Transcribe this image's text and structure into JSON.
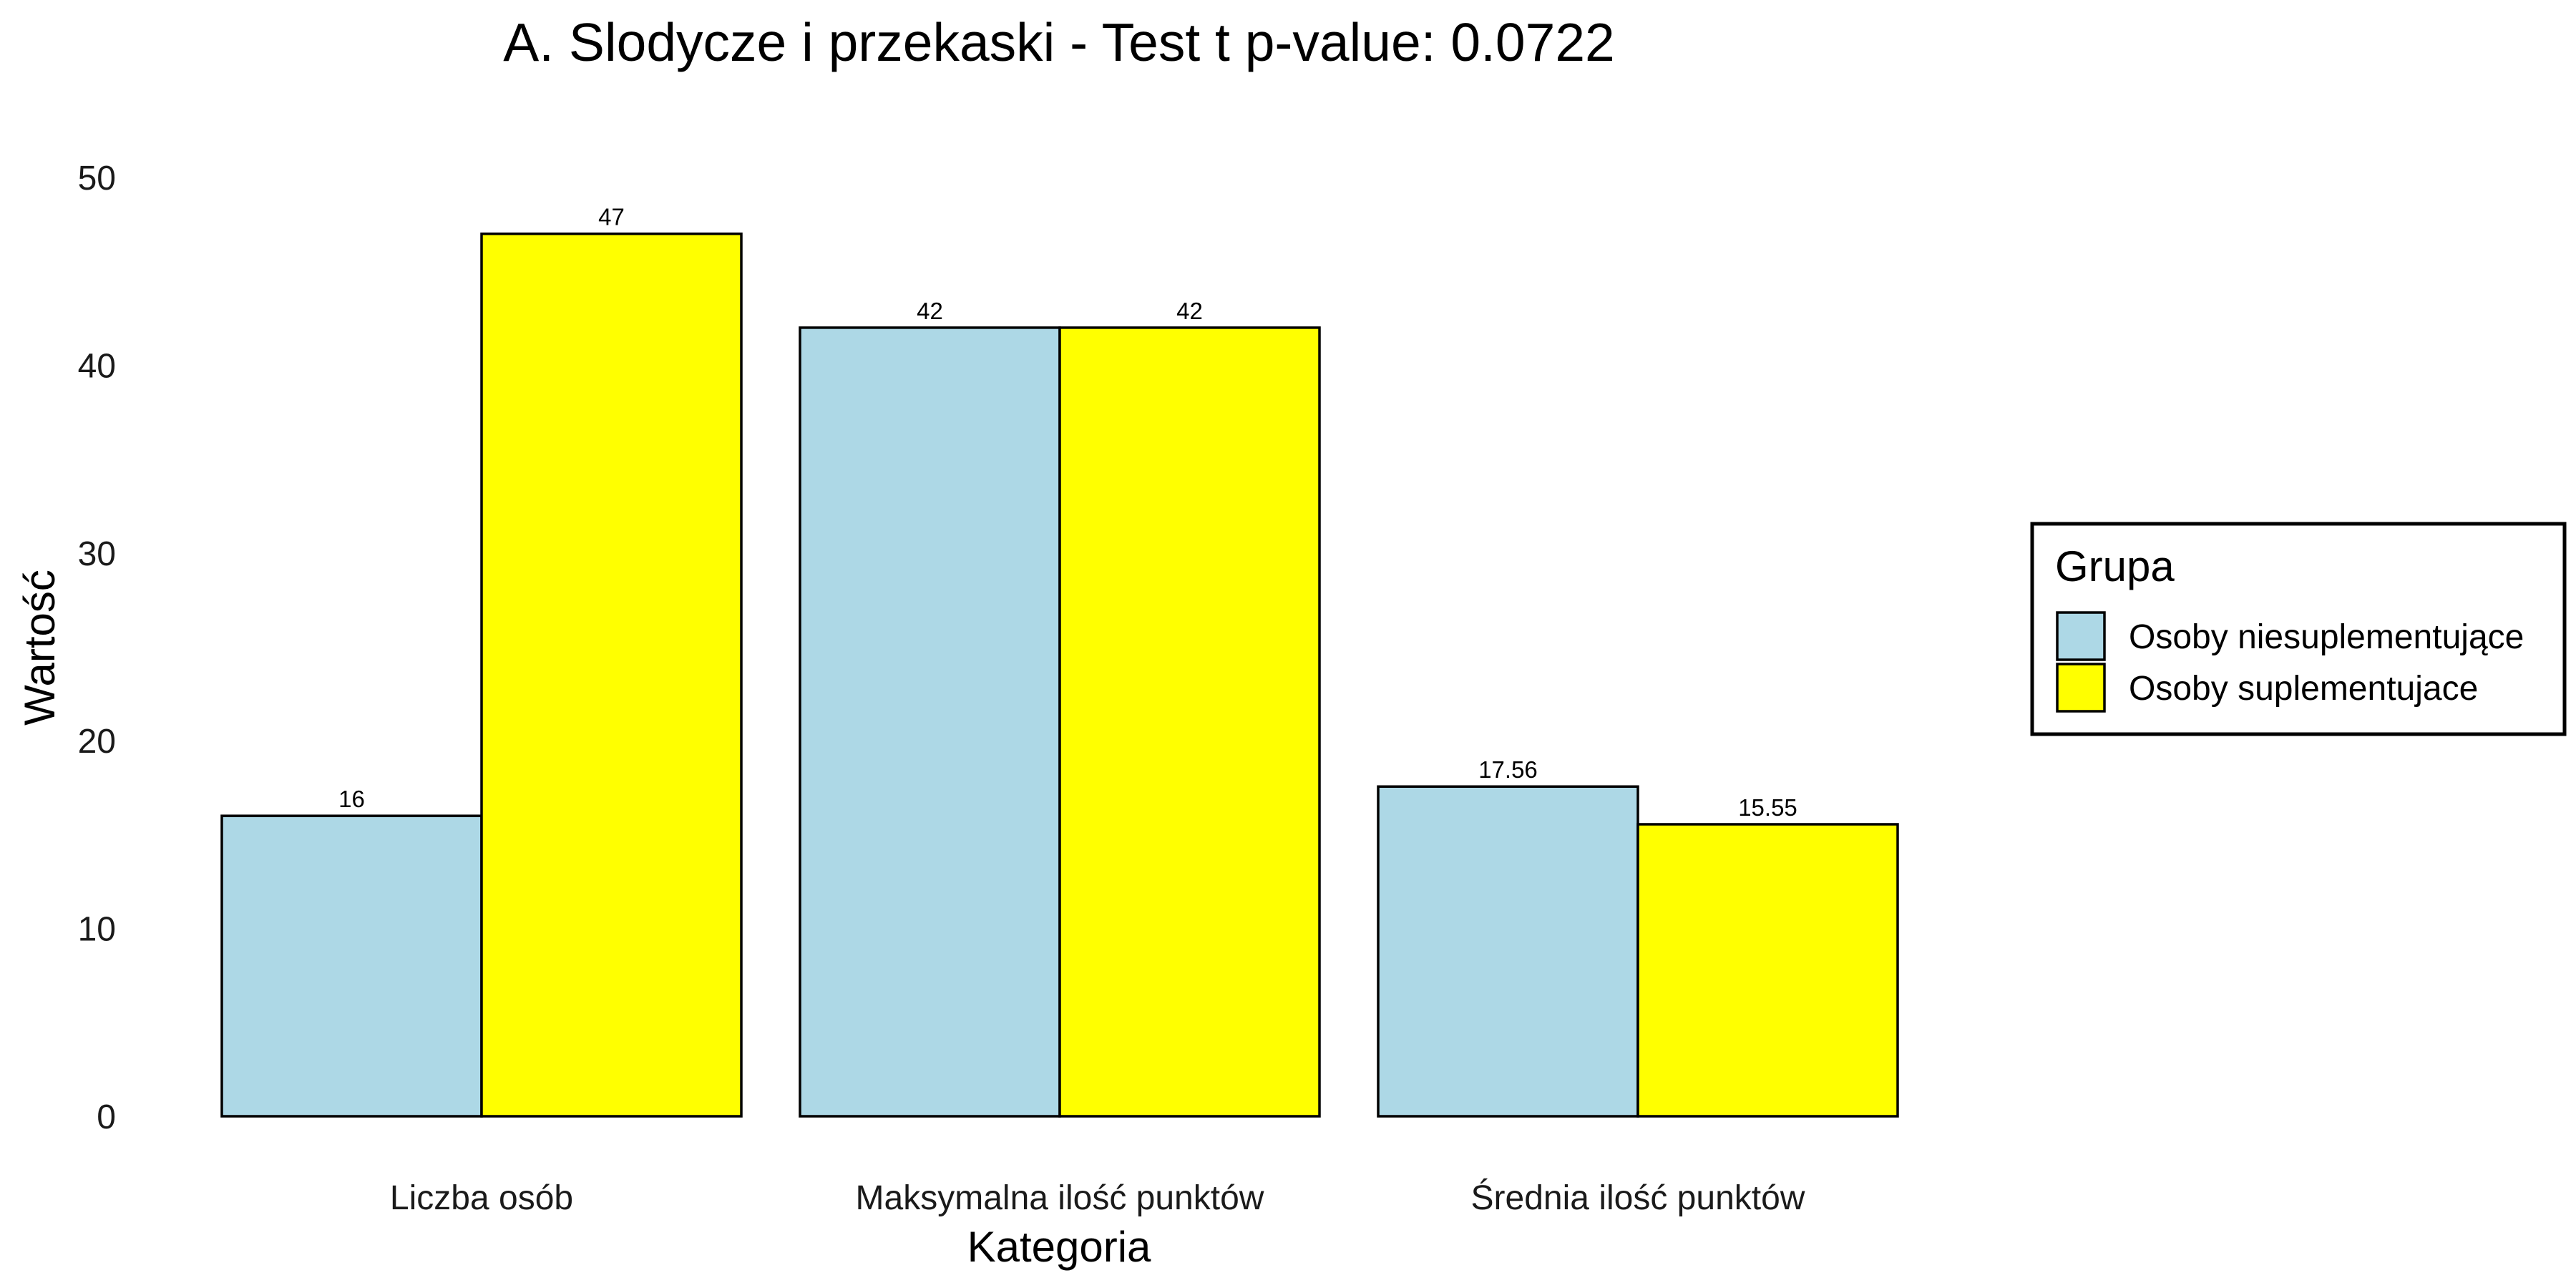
{
  "chart_data": {
    "type": "bar",
    "title": "A. Slodycze i przekaski - Test t p-value: 0.0722",
    "xlabel": "Kategoria",
    "ylabel": "Wartość",
    "ylim": [
      0,
      50
    ],
    "yticks": [
      "0",
      "10",
      "20",
      "30",
      "40",
      "50"
    ],
    "grid": false,
    "legend_position": "right",
    "legend_title": "Grupa",
    "categories": [
      "Liczba osób",
      "Maksymalna ilość punktów",
      "Średnia ilość punktów"
    ],
    "series": [
      {
        "name": "Osoby niesuplementujące",
        "color": "#ADD8E6",
        "values": [
          16,
          42,
          17.56
        ],
        "labels": [
          "16",
          "42",
          "17.56"
        ]
      },
      {
        "name": "Osoby suplementujace",
        "color": "#FFFF00",
        "values": [
          47,
          42,
          15.55
        ],
        "labels": [
          "47",
          "42",
          "15.55"
        ]
      }
    ]
  }
}
